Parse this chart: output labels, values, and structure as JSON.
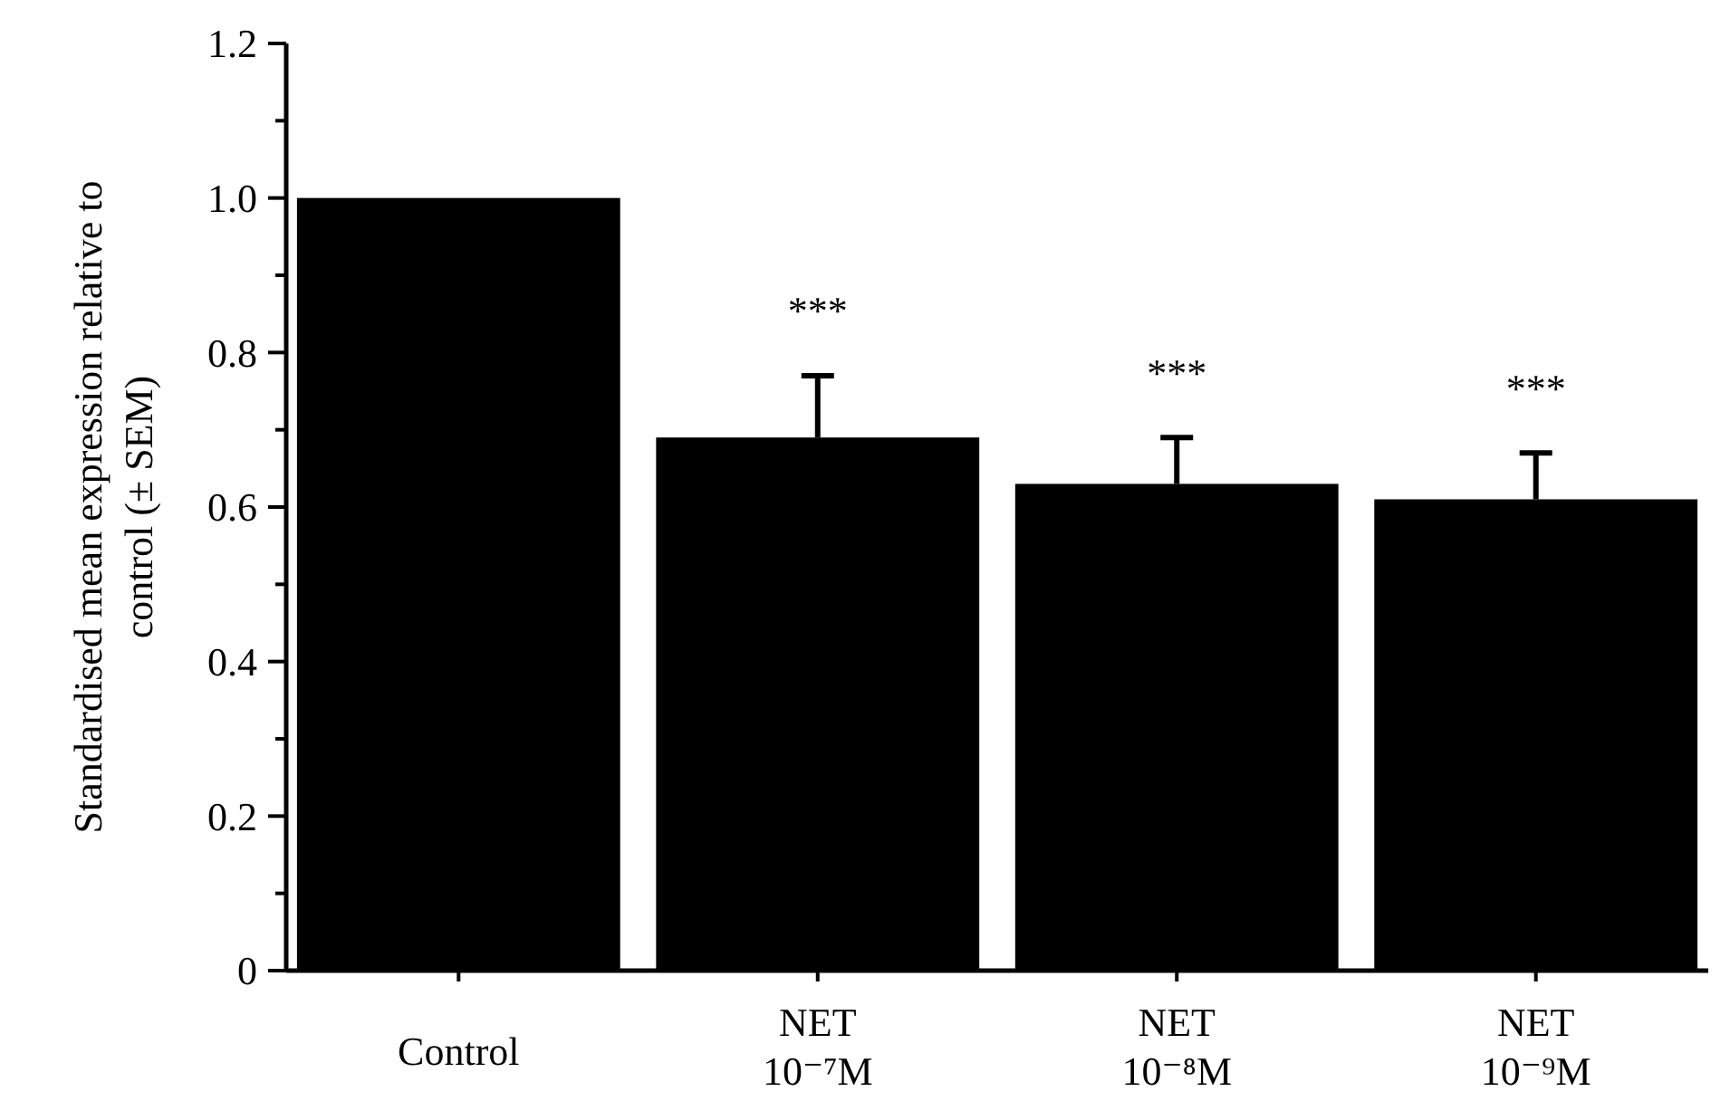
{
  "chart_data": {
    "type": "bar",
    "ylabel": "Standardised mean expression relative to\ncontrol (± SEM)",
    "categories": [
      "Control",
      "NET\n10⁻⁷M",
      "NET\n10⁻⁸M",
      "NET\n10⁻⁹M"
    ],
    "values": [
      1.0,
      0.69,
      0.63,
      0.61
    ],
    "errors": [
      null,
      [
        0.69,
        0.77
      ],
      [
        0.63,
        0.69
      ],
      [
        0.61,
        0.67
      ]
    ],
    "color": "#000000",
    "ylim": [
      0,
      1.2
    ],
    "yticks": [
      0,
      {
        "value": 0.1,
        "label": null
      },
      0.2,
      {
        "value": 0.3,
        "label": null
      },
      0.4,
      {
        "value": 0.5,
        "label": null
      },
      0.6,
      {
        "value": 0.7,
        "label": null
      },
      0.8,
      {
        "value": 0.9,
        "label": null
      },
      {
        "value": 1,
        "label": "1.0"
      },
      {
        "value": 1.1,
        "label": null
      },
      1.2
    ],
    "annotations": [
      "***",
      "***",
      "***"
    ]
  }
}
